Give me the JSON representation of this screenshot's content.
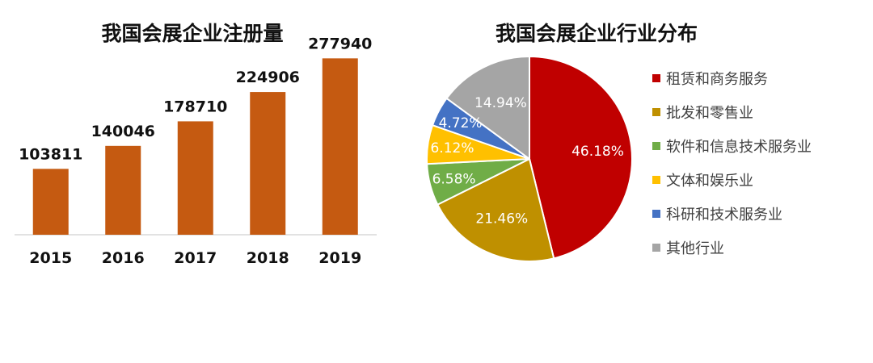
{
  "chart_data": [
    {
      "type": "bar",
      "title": "我国会展企业注册量",
      "categories": [
        "2015",
        "2016",
        "2017",
        "2018",
        "2019"
      ],
      "values": [
        103811,
        140046,
        178710,
        224906,
        277940
      ],
      "data_labels": [
        "103811",
        "140046",
        "178710",
        "224906",
        "277940"
      ],
      "color": "#C55A11",
      "ylim": [
        0,
        300000
      ],
      "grid": false,
      "legend": "none"
    },
    {
      "type": "pie",
      "title": "我国会展企业行业分布",
      "categories": [
        "租赁和商务服务",
        "批发和零售业",
        "软件和信息技术服务业",
        "文体和娱乐业",
        "科研和技术服务业",
        "其他行业"
      ],
      "values": [
        46.18,
        21.46,
        6.58,
        6.12,
        4.72,
        14.94
      ],
      "data_labels": [
        "46.18%",
        "21.46%",
        "6.58%",
        "6.12%",
        "4.72%",
        "14.94%"
      ],
      "colors": [
        "#C00000",
        "#BF9000",
        "#70AD47",
        "#FFC000",
        "#4472C4",
        "#A5A5A5"
      ],
      "legend": "right"
    }
  ]
}
